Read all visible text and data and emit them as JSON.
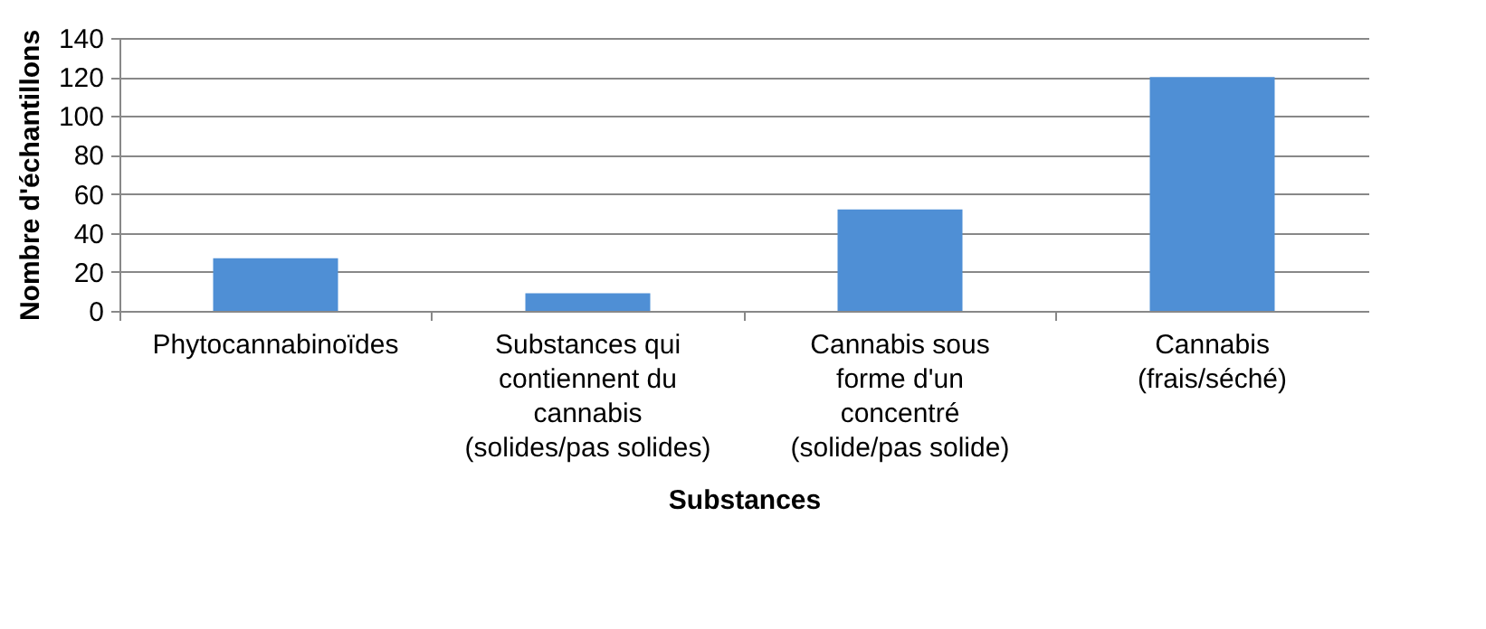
{
  "chart_data": {
    "type": "bar",
    "xlabel": "Substances",
    "ylabel": "Nombre d'échantillons",
    "categories": [
      "Phytocannabinoïdes",
      "Substances qui contiennent du cannabis (solides/pas solides)",
      "Cannabis sous forme d'un concentré (solide/pas solide)",
      "Cannabis (frais/séché)"
    ],
    "values": [
      27,
      9,
      52,
      120
    ],
    "color": "#4f8fd5",
    "ylim": [
      0,
      140
    ],
    "yticks": [
      0,
      20,
      40,
      60,
      80,
      100,
      120,
      140
    ],
    "grid": "y"
  }
}
